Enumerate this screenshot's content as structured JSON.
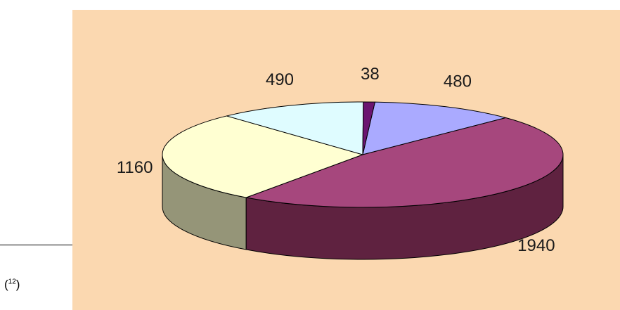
{
  "chart_data": {
    "type": "pie",
    "style": "3d",
    "background": "#fbd8b0",
    "slices": [
      {
        "value": 480,
        "label": "480",
        "top_color": "#aaaaff",
        "side_color": "#6b6bb0"
      },
      {
        "value": 1940,
        "label": "1940",
        "top_color": "#a6477d",
        "side_color": "#5f2240"
      },
      {
        "value": 1160,
        "label": "1160",
        "top_color": "#ffffd2",
        "side_color": "#959578"
      },
      {
        "value": 490,
        "label": "490",
        "top_color": "#dffcff",
        "side_color": "#95a8aa"
      },
      {
        "value": 38,
        "label": "38",
        "top_color": "#6b1470",
        "side_color": "#40063f"
      }
    ]
  },
  "footnote": {
    "open": "(",
    "number": "12",
    "close": ")"
  }
}
